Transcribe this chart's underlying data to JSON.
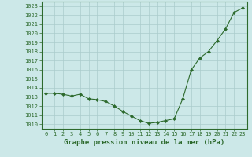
{
  "x": [
    0,
    1,
    2,
    3,
    4,
    5,
    6,
    7,
    8,
    9,
    10,
    11,
    12,
    13,
    14,
    15,
    16,
    17,
    18,
    19,
    20,
    21,
    22,
    23
  ],
  "y": [
    1013.4,
    1013.4,
    1013.3,
    1013.1,
    1013.3,
    1012.8,
    1012.7,
    1012.5,
    1012.0,
    1011.4,
    1010.9,
    1010.4,
    1010.1,
    1010.2,
    1010.4,
    1010.6,
    1012.8,
    1016.0,
    1017.3,
    1018.0,
    1019.2,
    1020.5,
    1022.3,
    1022.8
  ],
  "ylim": [
    1009.5,
    1023.5
  ],
  "yticks": [
    1010,
    1011,
    1012,
    1013,
    1014,
    1015,
    1016,
    1017,
    1018,
    1019,
    1020,
    1021,
    1022,
    1023
  ],
  "xticks": [
    0,
    1,
    2,
    3,
    4,
    5,
    6,
    7,
    8,
    9,
    10,
    11,
    12,
    13,
    14,
    15,
    16,
    17,
    18,
    19,
    20,
    21,
    22,
    23
  ],
  "xlabel": "Graphe pression niveau de la mer (hPa)",
  "line_color": "#2d6a2d",
  "marker": "D",
  "marker_size": 2.0,
  "background_color": "#cce8e8",
  "grid_color": "#aacccc",
  "text_color": "#2d6a2d",
  "tick_fontsize": 5.0,
  "xlabel_fontsize": 6.5,
  "xlim_left": -0.5,
  "xlim_right": 23.5
}
